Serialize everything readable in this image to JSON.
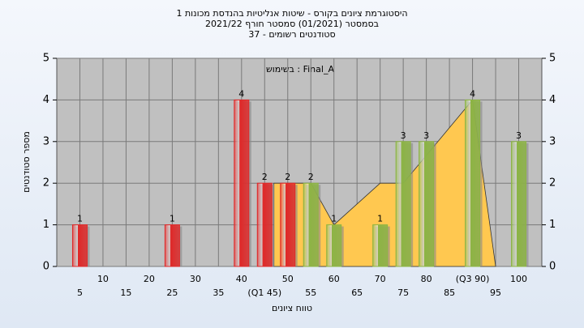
{
  "chart_data": {
    "type": "histogram",
    "title": [
      "היסטוגרמת ציונים בקורס - שיטות אנליטיות בהנדסת מכונות 1",
      "בסמסטר  (01/2021)  סמסטר חורף 2021/22",
      "סטודנטים רשומים - 37"
    ],
    "annotation": "בשימוש : Final_A",
    "xlabel": "טווח ציונים",
    "ylabel": "מספר סטודנטים",
    "xlim": [
      0,
      105
    ],
    "xticks": [
      5,
      10,
      15,
      20,
      25,
      30,
      35,
      40,
      {
        "value": 45,
        "label": "(Q1 45)"
      },
      50,
      55,
      60,
      65,
      70,
      75,
      80,
      85,
      {
        "value": 90,
        "label": "(Q3 90)"
      },
      95,
      100
    ],
    "ylim": [
      0,
      5
    ],
    "yticks": [
      0,
      1,
      2,
      3,
      4,
      5
    ],
    "grid": true,
    "area": {
      "color": "#ffc850",
      "x": [
        47,
        55,
        60,
        70,
        75,
        90,
        95
      ],
      "values": [
        2,
        2,
        1,
        2,
        2,
        4,
        0
      ]
    },
    "series": [
      {
        "color": "#e02828",
        "x": [
          5,
          25,
          40,
          45,
          50
        ],
        "values": [
          1,
          1,
          4,
          2,
          2
        ]
      },
      {
        "color": "#8cb444",
        "x": [
          55,
          60,
          70,
          75,
          80,
          90,
          100
        ],
        "values": [
          2,
          1,
          1,
          3,
          3,
          4,
          3
        ]
      }
    ]
  }
}
